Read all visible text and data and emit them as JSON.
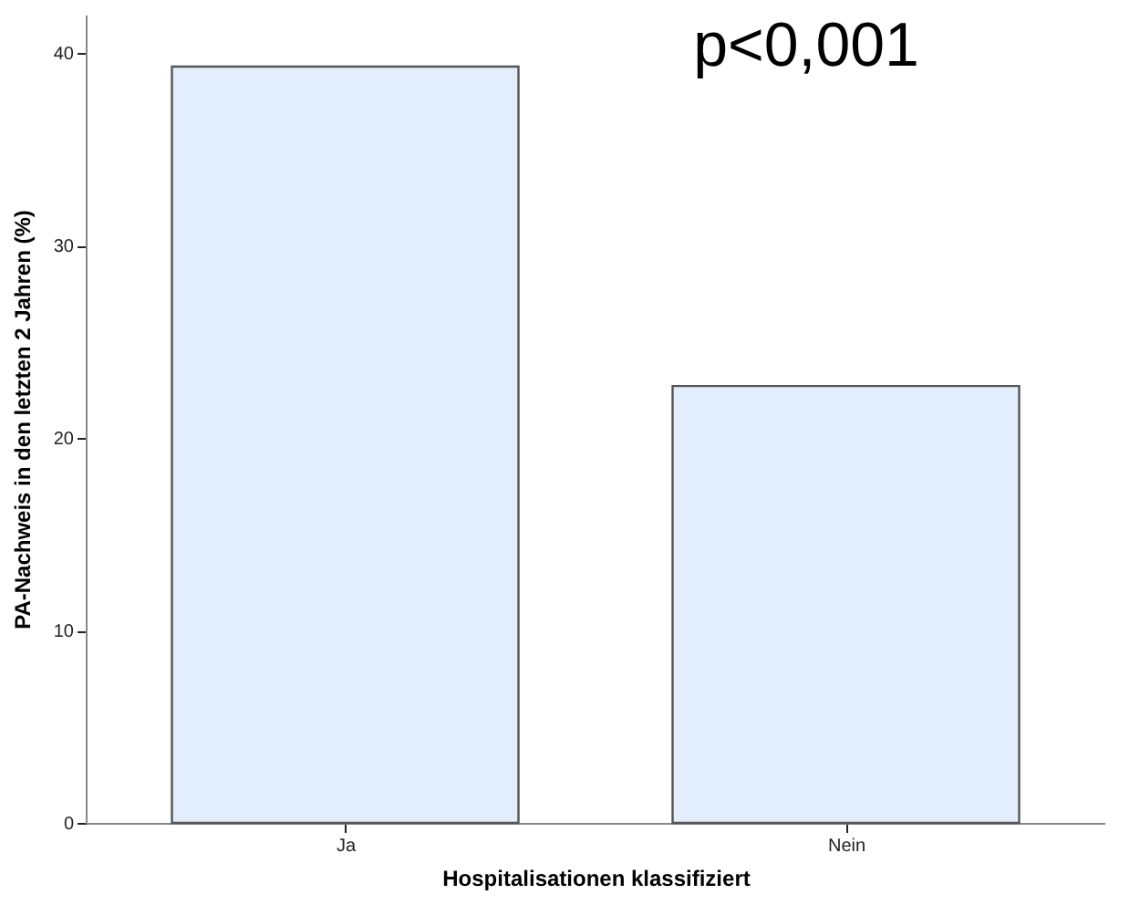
{
  "chart_data": {
    "type": "bar",
    "categories": [
      "Ja",
      "Nein"
    ],
    "values": [
      39.3,
      22.7
    ],
    "color": "#e2eefb",
    "xlabel": "Hospitalisationen klassifiziert",
    "ylabel": "PA-Nachweis in den letzten 2 Jahren (%)",
    "ylim": [
      0,
      42
    ],
    "yticks": [
      0,
      10,
      20,
      30,
      40
    ],
    "grid": false,
    "annotations": [
      "p<0,001"
    ]
  }
}
